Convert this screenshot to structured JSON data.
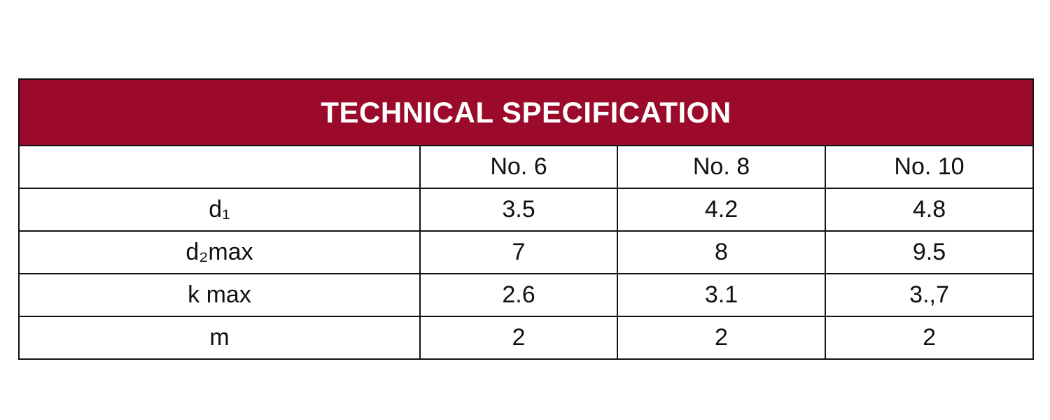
{
  "header": {
    "title": "TECHNICAL SPECIFICATION"
  },
  "table": {
    "columns": [
      "No. 6",
      "No. 8",
      "No. 10"
    ],
    "rows": [
      [
        "d₁",
        "3.5",
        "4.2",
        "4.8"
      ],
      [
        "d₂max",
        "7",
        "8",
        "9.5"
      ],
      [
        "k max",
        "2.6",
        "3.1",
        "3.,7"
      ],
      [
        "m",
        "2",
        "2",
        "2"
      ]
    ]
  }
}
